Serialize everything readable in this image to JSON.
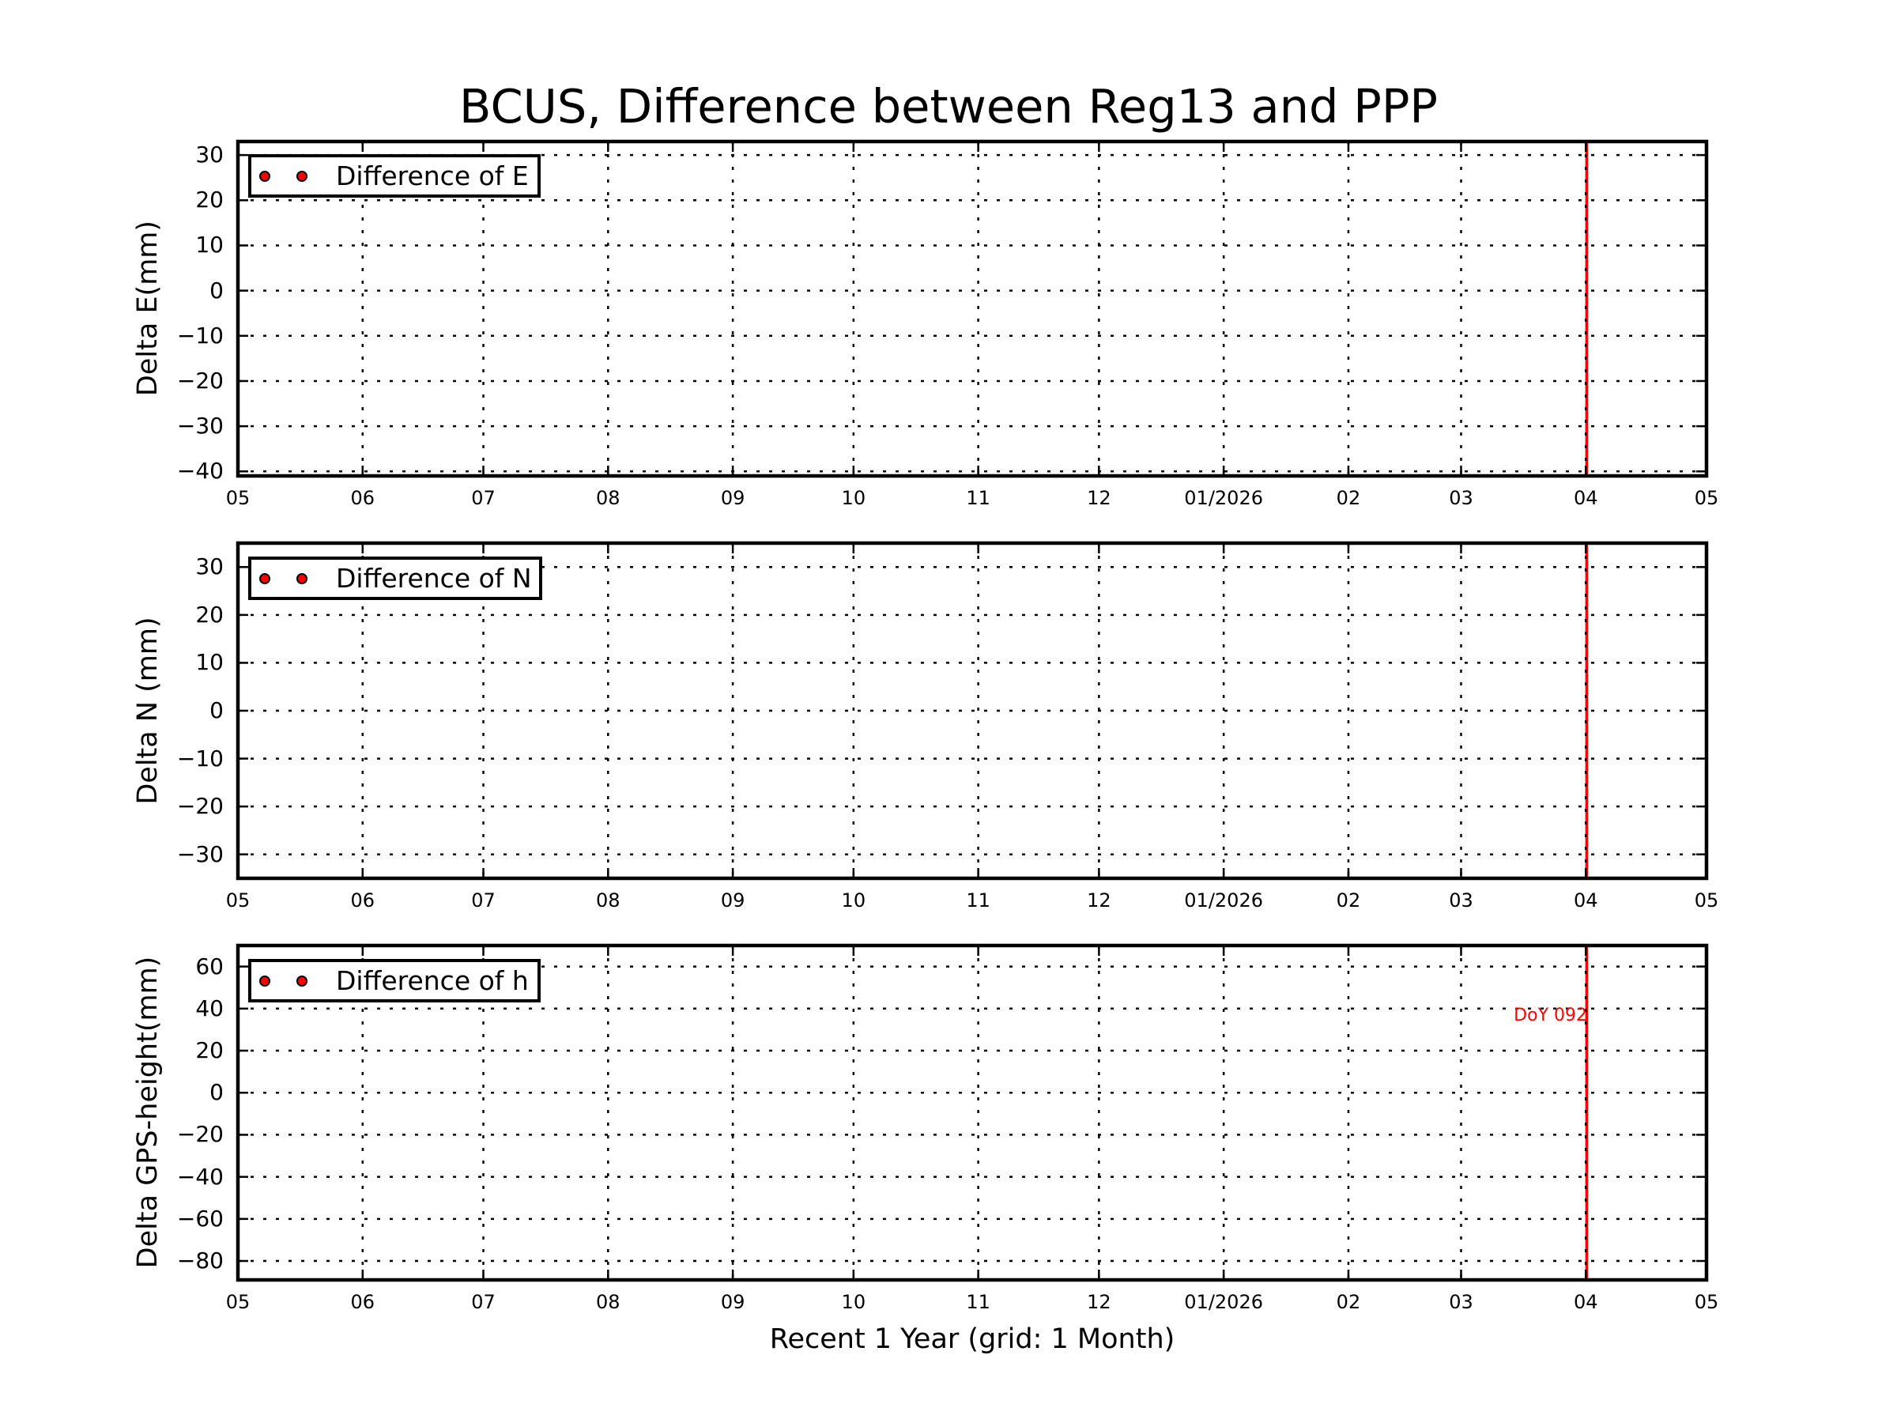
{
  "figure": {
    "title": "BCUS, Difference between Reg13 and PPP",
    "xlabel": "Recent 1 Year (grid: 1 Month)"
  },
  "colors": {
    "marker": "#ff0000",
    "marker_edge": "#000000",
    "event_line": "#ff0000",
    "annotation": "#ff0000",
    "grid": "#000000",
    "spine": "#000000"
  },
  "chart_data": [
    {
      "type": "scatter",
      "title": "BCUS, Difference between Reg13 and PPP",
      "xlabel": "",
      "ylabel": "Delta E(mm)",
      "legend": [
        "Difference of E"
      ],
      "legend_position": "upper left",
      "grid": true,
      "x_ticks": [
        "05",
        "06",
        "07",
        "08",
        "09",
        "10",
        "11",
        "12",
        "01/2026",
        "02",
        "03",
        "04",
        "05"
      ],
      "x_range": [
        "2025-05-01",
        "2026-05-01"
      ],
      "ylim": [
        -41,
        33
      ],
      "y_ticks": [
        30,
        20,
        10,
        0,
        -10,
        -20,
        -30,
        -40
      ],
      "y_tick_labels": [
        "30",
        "20",
        "10",
        "0",
        "−10",
        "−20",
        "−30",
        "−40"
      ],
      "series": [
        {
          "name": "Difference of E",
          "x": [],
          "y": []
        }
      ],
      "vlines": [
        {
          "x": "2026-04-02",
          "color": "#ff0000"
        }
      ],
      "annotations": []
    },
    {
      "type": "scatter",
      "title": "",
      "xlabel": "",
      "ylabel": "Delta N (mm)",
      "legend": [
        "Difference of N"
      ],
      "legend_position": "upper left",
      "grid": true,
      "x_ticks": [
        "05",
        "06",
        "07",
        "08",
        "09",
        "10",
        "11",
        "12",
        "01/2026",
        "02",
        "03",
        "04",
        "05"
      ],
      "x_range": [
        "2025-05-01",
        "2026-05-01"
      ],
      "ylim": [
        -35,
        35
      ],
      "y_ticks": [
        30,
        20,
        10,
        0,
        -10,
        -20,
        -30
      ],
      "y_tick_labels": [
        "30",
        "20",
        "10",
        "0",
        "−10",
        "−20",
        "−30"
      ],
      "series": [
        {
          "name": "Difference of N",
          "x": [],
          "y": []
        }
      ],
      "vlines": [
        {
          "x": "2026-04-02",
          "color": "#ff0000"
        }
      ],
      "annotations": []
    },
    {
      "type": "scatter",
      "title": "",
      "xlabel": "Recent 1 Year (grid: 1 Month)",
      "ylabel": "Delta GPS-height(mm)",
      "legend": [
        "Difference of h"
      ],
      "legend_position": "upper left",
      "grid": true,
      "x_ticks": [
        "05",
        "06",
        "07",
        "08",
        "09",
        "10",
        "11",
        "12",
        "01/2026",
        "02",
        "03",
        "04",
        "05"
      ],
      "x_range": [
        "2025-05-01",
        "2026-05-01"
      ],
      "ylim": [
        -89,
        70
      ],
      "y_ticks": [
        60,
        40,
        20,
        0,
        -20,
        -40,
        -60,
        -80
      ],
      "y_tick_labels": [
        "60",
        "40",
        "20",
        "0",
        "−20",
        "−40",
        "−60",
        "−80"
      ],
      "series": [
        {
          "name": "Difference of h",
          "x": [],
          "y": []
        }
      ],
      "vlines": [
        {
          "x": "2026-04-02",
          "color": "#ff0000"
        }
      ],
      "annotations": [
        {
          "text": "DoY 092",
          "x": "2026-04-02",
          "y": 37,
          "color": "#ff0000"
        }
      ]
    }
  ]
}
